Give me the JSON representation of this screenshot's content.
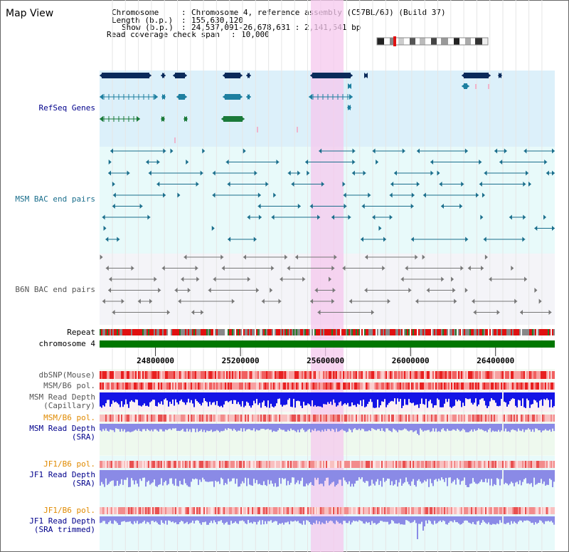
{
  "app": {
    "title": "Map View"
  },
  "header": {
    "chromosome_label": "Chromosome",
    "chromosome_value": "Chromosome 4, reference assembly (C57BL/6J) (Build 37)",
    "length_label": "Length (b.p.)",
    "length_value": "155,630,120",
    "show_label": "Show (b.p.)",
    "show_value": "24,537,091-26,678,631 : 2,141,541 bp",
    "coverage_label": "Read coverage check span",
    "coverage_value": "10,000"
  },
  "tracks": {
    "refseq": {
      "label": "RefSeq Genes",
      "color": "#00008b"
    },
    "msm_bac": {
      "label": "MSM BAC end pairs",
      "color": "#1a6e8c"
    },
    "b6n_bac": {
      "label": "B6N BAC end pairs",
      "color": "#777777"
    },
    "repeat": {
      "label": "Repeat"
    },
    "chromosome": {
      "label": "chromosome 4"
    },
    "dbsnp": {
      "label": "dbSNP(Mouse)"
    },
    "msm_b6_pol_1": {
      "label": "MSM/B6 pol."
    },
    "msm_depth_cap": {
      "label": "MSM Read Depth",
      "sub": "(Capillary)"
    },
    "msm_b6_pol_2": {
      "label": "MSM/B6 pol."
    },
    "msm_depth_sra": {
      "label": "MSM Read Depth",
      "sub": "(SRA)"
    },
    "jf1_b6_pol_1": {
      "label": "JF1/B6 pol."
    },
    "jf1_depth_sra": {
      "label": "JF1 Read Depth",
      "sub": "(SRA)"
    },
    "jf1_b6_pol_2": {
      "label": "JF1/B6 pol."
    },
    "jf1_depth_trim": {
      "label": "JF1 Read Depth",
      "sub": "(SRA trimmed)"
    }
  },
  "axis": {
    "ticks": [
      "24800000",
      "25200000",
      "25600000",
      "26000000",
      "26400000"
    ],
    "tick_values": [
      24800000,
      25200000,
      25600000,
      26000000,
      26400000
    ],
    "range_start": 24537091,
    "range_end": 26678631
  },
  "highlight": {
    "start": 25537091,
    "end": 25684000
  },
  "colors": {
    "refseq_bg": "#dcf0fa",
    "bac_bg": "#e8fafa",
    "b6n_bg": "#f4f4f8",
    "highlight": "#f5c8ee",
    "label_blue": "#00008b",
    "label_teal": "#1a6e8c",
    "label_orange": "#e08a00",
    "label_gray": "#555555",
    "chrom_green": "#007700",
    "depth_blue": "#1414e6",
    "depth_light": "#8a8ae6"
  }
}
